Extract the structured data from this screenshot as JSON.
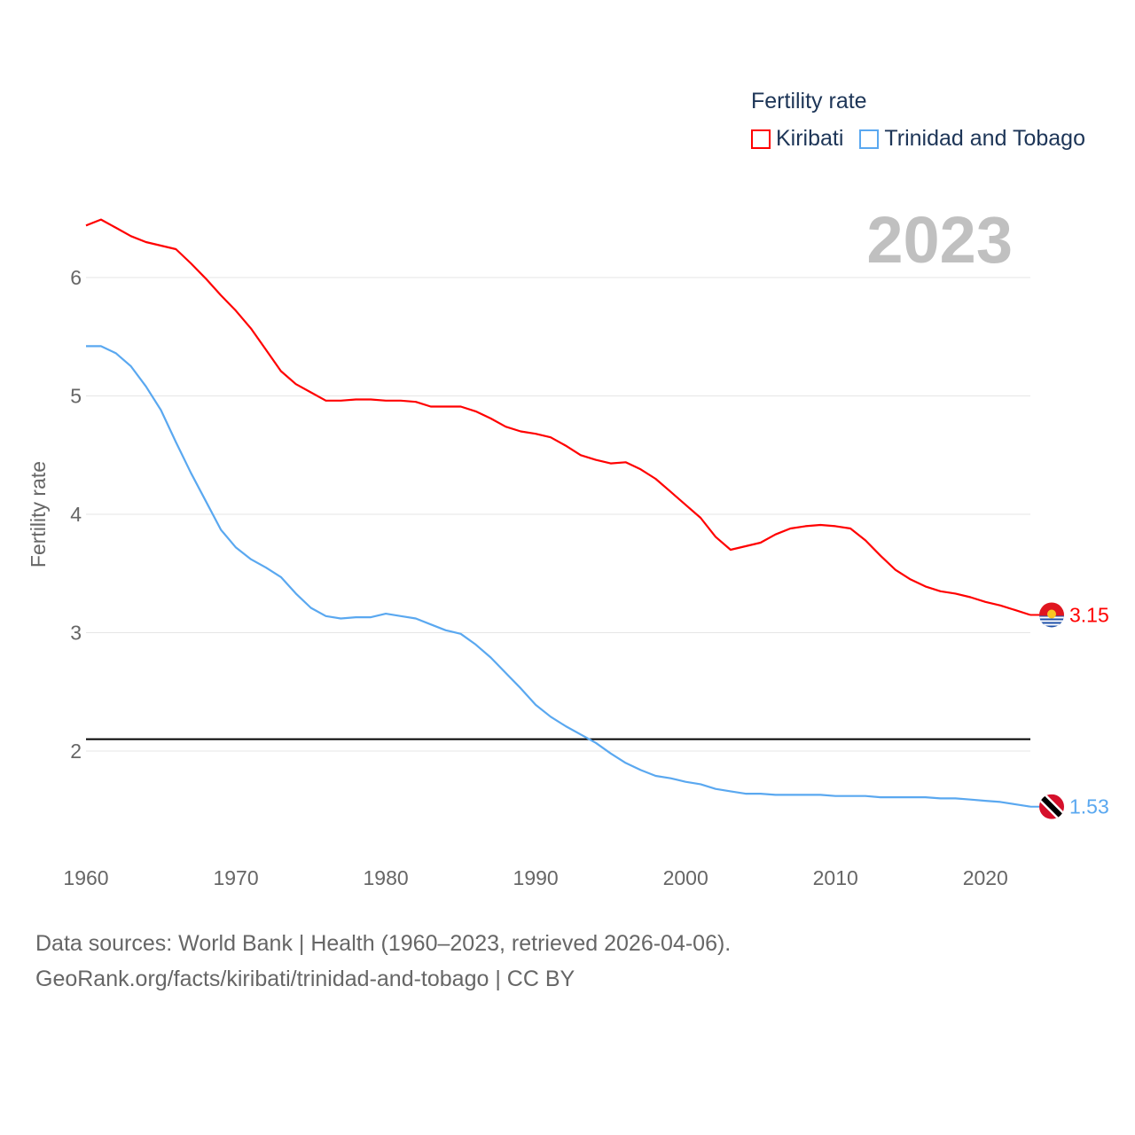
{
  "legend": {
    "title": "Fertility rate",
    "items": [
      {
        "label": "Kiribati",
        "color": "#ff0000"
      },
      {
        "label": "Trinidad and Tobago",
        "color": "#5aa8f0"
      }
    ]
  },
  "year_label": "2023",
  "footer": {
    "line1": "Data sources: World Bank | Health (1960–2023, retrieved 2026-04-06).",
    "line2": "GeoRank.org/facts/kiribati/trinidad-and-tobago | CC BY"
  },
  "chart_data": {
    "type": "line",
    "title": "Fertility rate",
    "xlabel": "",
    "ylabel": "Fertility rate",
    "xlim": [
      1960,
      2023
    ],
    "ylim": [
      1.2,
      6.6
    ],
    "xticks": [
      1960,
      1970,
      1980,
      1990,
      2000,
      2010,
      2020
    ],
    "yticks": [
      2,
      3,
      4,
      5,
      6
    ],
    "grid": true,
    "legend_position": "top-right",
    "reference_line": 2.1,
    "x_start": 1960,
    "series": [
      {
        "name": "Kiribati",
        "color": "#ff0000",
        "end_label": "3.15",
        "values": [
          6.44,
          6.49,
          6.42,
          6.35,
          6.3,
          6.27,
          6.24,
          6.12,
          5.99,
          5.85,
          5.72,
          5.57,
          5.39,
          5.21,
          5.1,
          5.03,
          4.96,
          4.96,
          4.97,
          4.97,
          4.96,
          4.96,
          4.95,
          4.91,
          4.91,
          4.91,
          4.87,
          4.81,
          4.74,
          4.7,
          4.68,
          4.65,
          4.58,
          4.5,
          4.46,
          4.43,
          4.44,
          4.38,
          4.3,
          4.19,
          4.08,
          3.97,
          3.81,
          3.7,
          3.73,
          3.76,
          3.83,
          3.88,
          3.9,
          3.91,
          3.9,
          3.88,
          3.78,
          3.65,
          3.53,
          3.45,
          3.39,
          3.35,
          3.33,
          3.3,
          3.26,
          3.23,
          3.19,
          3.15
        ]
      },
      {
        "name": "Trinidad and Tobago",
        "color": "#5aa8f0",
        "end_label": "1.53",
        "values": [
          5.42,
          5.42,
          5.36,
          5.25,
          5.08,
          4.88,
          4.61,
          4.35,
          4.11,
          3.87,
          3.72,
          3.62,
          3.55,
          3.47,
          3.33,
          3.21,
          3.14,
          3.12,
          3.13,
          3.13,
          3.16,
          3.14,
          3.12,
          3.07,
          3.02,
          2.99,
          2.9,
          2.79,
          2.66,
          2.53,
          2.39,
          2.29,
          2.21,
          2.14,
          2.07,
          1.98,
          1.9,
          1.84,
          1.79,
          1.77,
          1.74,
          1.72,
          1.68,
          1.66,
          1.64,
          1.64,
          1.63,
          1.63,
          1.63,
          1.63,
          1.62,
          1.62,
          1.62,
          1.61,
          1.61,
          1.61,
          1.61,
          1.6,
          1.6,
          1.59,
          1.58,
          1.57,
          1.55,
          1.53
        ]
      }
    ]
  }
}
